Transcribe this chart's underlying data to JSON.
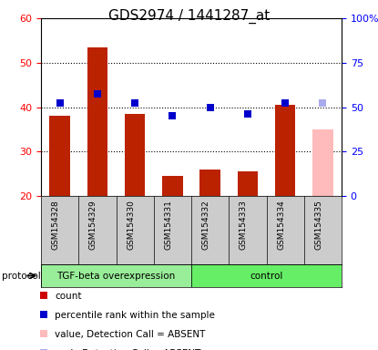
{
  "title": "GDS2974 / 1441287_at",
  "samples": [
    "GSM154328",
    "GSM154329",
    "GSM154330",
    "GSM154331",
    "GSM154332",
    "GSM154333",
    "GSM154334",
    "GSM154335"
  ],
  "bar_values": [
    38.0,
    53.5,
    38.5,
    24.5,
    26.0,
    25.5,
    40.5,
    35.0
  ],
  "bar_colors": [
    "#bb2200",
    "#bb2200",
    "#bb2200",
    "#bb2200",
    "#bb2200",
    "#bb2200",
    "#bb2200",
    "#ffbbbb"
  ],
  "dot_values": [
    41.0,
    43.0,
    41.0,
    38.0,
    40.0,
    38.5,
    41.0,
    41.0
  ],
  "dot_colors": [
    "#0000cc",
    "#0000cc",
    "#0000cc",
    "#0000cc",
    "#0000cc",
    "#0000cc",
    "#0000cc",
    "#aaaaee"
  ],
  "ylim_left": [
    20,
    60
  ],
  "ylim_right": [
    0,
    100
  ],
  "yticks_left": [
    20,
    30,
    40,
    50,
    60
  ],
  "yticks_right": [
    0,
    25,
    50,
    75,
    100
  ],
  "yticklabels_right": [
    "0",
    "25",
    "50",
    "75",
    "100%"
  ],
  "protocol_groups": [
    {
      "label": "TGF-beta overexpression",
      "start": 0,
      "end": 3,
      "color": "#99ee99"
    },
    {
      "label": "control",
      "start": 4,
      "end": 7,
      "color": "#66ee66"
    }
  ],
  "protocol_label": "protocol",
  "legend_items": [
    {
      "color": "#cc0000",
      "label": "count"
    },
    {
      "color": "#0000cc",
      "label": "percentile rank within the sample"
    },
    {
      "color": "#ffbbbb",
      "label": "value, Detection Call = ABSENT"
    },
    {
      "color": "#aaaaee",
      "label": "rank, Detection Call = ABSENT"
    }
  ],
  "bar_bottom": 20,
  "grid_dotted_at": [
    30,
    40,
    50
  ],
  "title_fontsize": 11,
  "tick_fontsize": 8,
  "label_fontsize": 7,
  "legend_fontsize": 7.5
}
